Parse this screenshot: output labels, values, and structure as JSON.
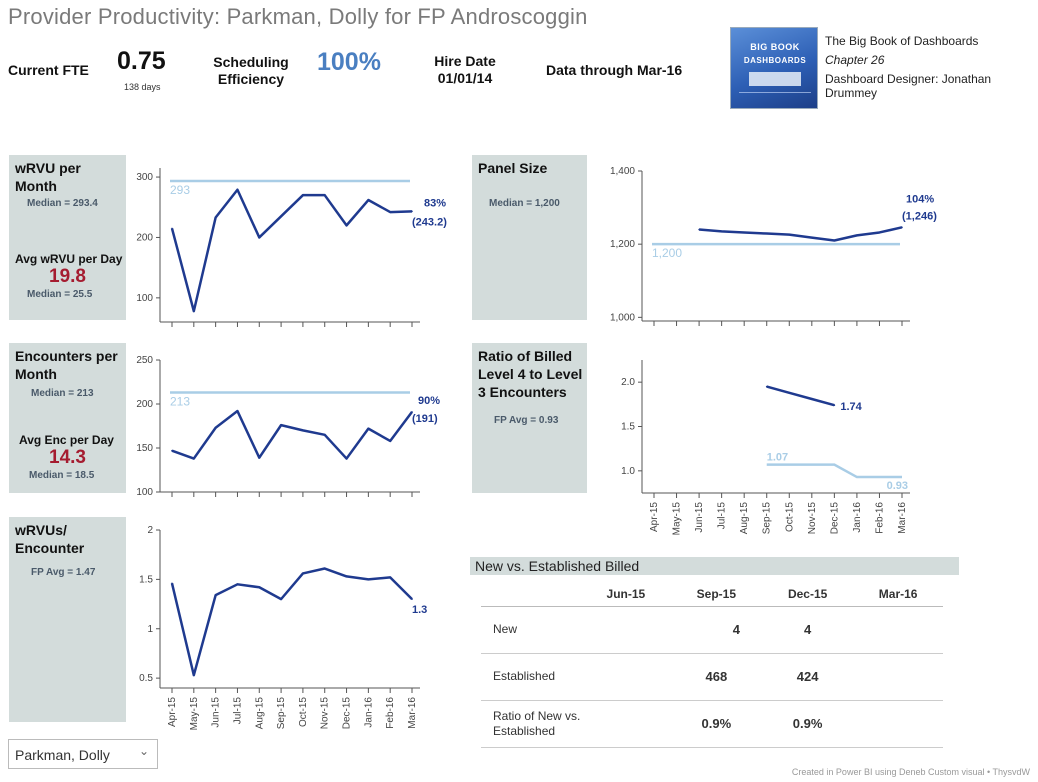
{
  "title": "Provider Productivity: Parkman, Dolly for FP Androscoggin",
  "kpis": {
    "fte_label": "Current FTE",
    "fte_value": "0.75",
    "fte_sub": "138 days",
    "sched_label_1": "Scheduling",
    "sched_label_2": "Efficiency",
    "sched_value": "100%",
    "hire_label": "Hire Date",
    "hire_value": "01/01/14",
    "data_through": "Data through Mar-16"
  },
  "book": {
    "line1": "BIG BOOK",
    "line2": "DASHBOARDS",
    "credit_title": "The Big Book of Dashboards",
    "credit_chapter": "Chapter 26",
    "credit_designer": "Dashboard Designer: Jonathan Drummey"
  },
  "colors": {
    "series": "#1f3a8f",
    "reference": "#a9cde6",
    "panel": "#d3dcdb",
    "accent_red": "#a51c30",
    "kpi_blue": "#4a7fc1"
  },
  "panels": {
    "wrvu": {
      "title_1": "wRVU per",
      "title_2": "Month",
      "median": "Median = 293.4",
      "avg_label": "Avg wRVU per Day",
      "avg_value": "19.8",
      "avg_median": "Median = 25.5"
    },
    "enc": {
      "title_1": "Encounters per",
      "title_2": "Month",
      "median": "Median = 213",
      "avg_label": "Avg Enc per Day",
      "avg_value": "14.3",
      "avg_median": "Median = 18.5"
    },
    "wrvu_enc": {
      "title_1": "wRVUs/",
      "title_2": "Encounter",
      "median": "FP Avg = 1.47"
    },
    "panel_size": {
      "title_1": "Panel Size",
      "median": "Median = 1,200"
    },
    "ratio": {
      "title_1": "Ratio of Billed",
      "title_2": "Level 4 to Level",
      "title_3": "3 Encounters",
      "median": "FP Avg = 0.93"
    }
  },
  "chart_data": [
    {
      "id": "wrvu",
      "type": "line",
      "x": [
        "Apr-15",
        "May-15",
        "Jun-15",
        "Jul-15",
        "Aug-15",
        "Sep-15",
        "Oct-15",
        "Nov-15",
        "Dec-15",
        "Jan-16",
        "Feb-16",
        "Mar-16"
      ],
      "series": [
        {
          "values": [
            215,
            78,
            233,
            279,
            200,
            235,
            270,
            270,
            220,
            262,
            242,
            243.2
          ]
        }
      ],
      "reference": {
        "value": 293.4,
        "label": "293"
      },
      "ylim": [
        60,
        315
      ],
      "yticks": [
        100,
        200,
        300
      ],
      "end_labels": [
        "83%",
        "(243.2)"
      ]
    },
    {
      "id": "enc",
      "type": "line",
      "x": [
        "Apr-15",
        "May-15",
        "Jun-15",
        "Jul-15",
        "Aug-15",
        "Sep-15",
        "Oct-15",
        "Nov-15",
        "Dec-15",
        "Jan-16",
        "Feb-16",
        "Mar-16"
      ],
      "series": [
        {
          "values": [
            147,
            138,
            173,
            192,
            139,
            176,
            170,
            165,
            138,
            172,
            158,
            191
          ]
        }
      ],
      "reference": {
        "value": 213,
        "label": "213"
      },
      "ylim": [
        100,
        250
      ],
      "yticks": [
        100,
        150,
        200,
        250
      ],
      "end_labels": [
        "90%",
        "(191)"
      ]
    },
    {
      "id": "wrvu_enc",
      "type": "line",
      "x": [
        "Apr-15",
        "May-15",
        "Jun-15",
        "Jul-15",
        "Aug-15",
        "Sep-15",
        "Oct-15",
        "Nov-15",
        "Dec-15",
        "Jan-16",
        "Feb-16",
        "Mar-16"
      ],
      "series": [
        {
          "values": [
            1.46,
            0.53,
            1.34,
            1.45,
            1.42,
            1.3,
            1.56,
            1.61,
            1.53,
            1.5,
            1.52,
            1.3
          ]
        }
      ],
      "ylim": [
        0.4,
        2.0
      ],
      "yticks": [
        0.5,
        1.0,
        1.5,
        2.0
      ],
      "end_labels": [
        "1.3"
      ]
    },
    {
      "id": "panel_size",
      "type": "line",
      "x": [
        "Apr-15",
        "May-15",
        "Jun-15",
        "Jul-15",
        "Aug-15",
        "Sep-15",
        "Oct-15",
        "Nov-15",
        "Dec-15",
        "Jan-16",
        "Feb-16",
        "Mar-16"
      ],
      "series": [
        {
          "values": [
            null,
            null,
            1240,
            1235,
            1232,
            1229,
            1226,
            1218,
            1210,
            1224,
            1232,
            1246
          ]
        }
      ],
      "reference": {
        "value": 1200,
        "label": "1,200"
      },
      "ylim": [
        990,
        1400
      ],
      "yticks": [
        1000,
        1200,
        1400
      ],
      "ytick_labels": [
        "1,000",
        "1,200",
        "1,400"
      ],
      "end_labels": [
        "104%",
        "(1,246)"
      ]
    },
    {
      "id": "ratio",
      "type": "line",
      "x": [
        "Apr-15",
        "May-15",
        "Jun-15",
        "Jul-15",
        "Aug-15",
        "Sep-15",
        "Oct-15",
        "Nov-15",
        "Dec-15",
        "Jan-16",
        "Feb-16",
        "Mar-16"
      ],
      "series": [
        {
          "values": [
            null,
            null,
            null,
            null,
            null,
            1.95,
            1.88,
            1.81,
            1.74,
            null,
            null,
            null
          ]
        }
      ],
      "reference": {
        "values": [
          null,
          null,
          null,
          null,
          null,
          1.07,
          1.07,
          1.07,
          1.07,
          0.93,
          0.93,
          0.93
        ],
        "label_start": "1.07",
        "label_end": "0.93"
      },
      "ylim": [
        0.75,
        2.25
      ],
      "yticks": [
        1.0,
        1.5,
        2.0
      ],
      "ytick_labels": [
        "1.0",
        "1.5",
        "2.0"
      ],
      "end_labels": [
        "1.74"
      ],
      "show_xaxis": true
    },
    {
      "id": "new_vs_established",
      "type": "table",
      "title": "New vs. Established Billed",
      "columns": [
        "",
        "Jun-15",
        "Sep-15",
        "Dec-15",
        "Mar-16"
      ],
      "rows": [
        {
          "label": "New",
          "values": [
            "",
            "4",
            "4",
            ""
          ]
        },
        {
          "label": "Established",
          "values": [
            "",
            "468",
            "424",
            ""
          ]
        },
        {
          "label": "Ratio of New vs. Established",
          "values": [
            "",
            "0.9%",
            "0.9%",
            ""
          ]
        }
      ]
    }
  ],
  "filter": {
    "selected": "Parkman, Dolly"
  },
  "footer": "Created in Power BI using Deneb Custom visual • ThysvdW"
}
